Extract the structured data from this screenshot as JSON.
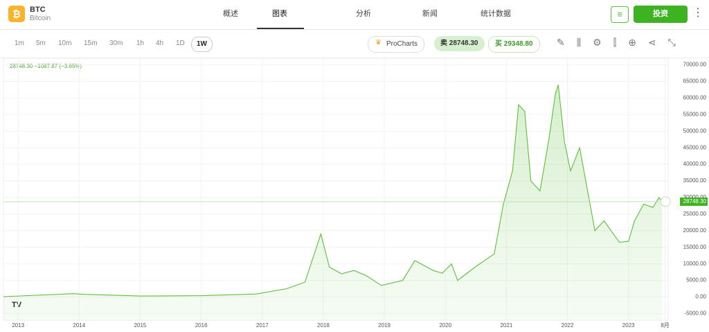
{
  "header": {
    "symbol": "BTC",
    "name": "Bitcoin",
    "nav": [
      "概述",
      "图表",
      "分析",
      "新闻",
      "统计数据"
    ],
    "active_nav": 1,
    "invest": "投资"
  },
  "toolbar": {
    "timeframes": [
      "1m",
      "5m",
      "10m",
      "15m",
      "30m",
      "1h",
      "4h",
      "1D",
      "1W"
    ],
    "active_timeframe": 8,
    "procharts": "ProCharts",
    "sell": "卖 28748.30",
    "buy": "买 29348.80"
  },
  "chart_data": {
    "type": "area",
    "legend": "28748.30  −1087.87 (−3.65%)",
    "color": "#5cbf3a",
    "x": [
      2012.76,
      2013.9,
      2014.1,
      2015,
      2016,
      2016.9,
      2017.4,
      2017.7,
      2017.96,
      2018.1,
      2018.3,
      2018.5,
      2018.7,
      2018.95,
      2019.3,
      2019.5,
      2019.8,
      2019.95,
      2020.1,
      2020.2,
      2020.5,
      2020.8,
      2020.95,
      2021.1,
      2021.2,
      2021.3,
      2021.4,
      2021.55,
      2021.7,
      2021.8,
      2021.85,
      2021.95,
      2022.05,
      2022.2,
      2022.35,
      2022.45,
      2022.6,
      2022.85,
      2023.0,
      2023.1,
      2023.25,
      2023.4,
      2023.5,
      2023.55
    ],
    "values": [
      100,
      1000,
      800,
      300,
      400,
      900,
      2500,
      4500,
      19000,
      9000,
      7000,
      8000,
      6500,
      3500,
      5000,
      11000,
      8000,
      7200,
      10000,
      5000,
      9200,
      13000,
      28000,
      38000,
      58000,
      56000,
      35000,
      32000,
      48000,
      61000,
      64000,
      47000,
      38000,
      45000,
      30000,
      20000,
      23000,
      16500,
      16800,
      23000,
      28000,
      27000,
      30000,
      28748.3
    ],
    "last_price": {
      "value": 28748.3,
      "label": "28748.30"
    },
    "xlim": [
      2012.76,
      2023.65
    ],
    "xticks": [
      2013,
      2014,
      2015,
      2016,
      2017,
      2018,
      2019,
      2020,
      2021,
      2022,
      2023,
      {
        "value": 2023.6,
        "label": "8月"
      }
    ],
    "ylim": [
      -7000,
      72000
    ],
    "yticks": [
      {
        "value": -5000,
        "label": "-5000.00"
      },
      {
        "value": 0,
        "label": "0.00"
      },
      {
        "value": 5000,
        "label": "5000.00"
      },
      {
        "value": 10000,
        "label": "10000.00"
      },
      {
        "value": 15000,
        "label": "15000.00"
      },
      {
        "value": 20000,
        "label": "20000.00"
      },
      {
        "value": 25000,
        "label": "25000.00"
      },
      {
        "value": 30000,
        "label": "30000.00"
      },
      {
        "value": 35000,
        "label": "35000.00"
      },
      {
        "value": 40000,
        "label": "40000.00"
      },
      {
        "value": 45000,
        "label": "45000.00"
      },
      {
        "value": 50000,
        "label": "50000.00"
      },
      {
        "value": 55000,
        "label": "55000.00"
      },
      {
        "value": 60000,
        "label": "60000.00"
      },
      {
        "value": 65000,
        "label": "65000.00"
      },
      {
        "value": 70000,
        "label": "70000.00"
      }
    ],
    "grid": true
  }
}
